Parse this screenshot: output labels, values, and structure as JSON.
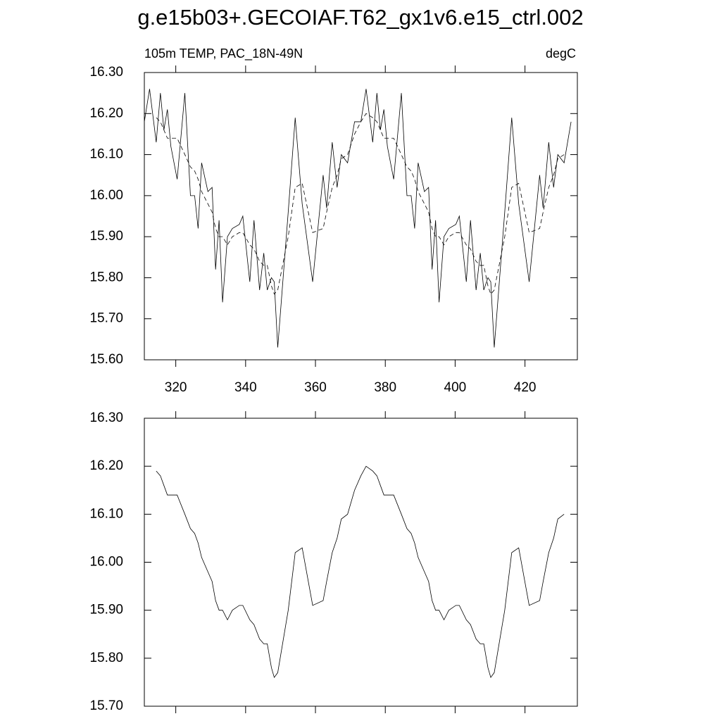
{
  "title": "g.e15b03+.GECOIAF.T62_gx1v6.e15_ctrl.002",
  "chart_data": [
    {
      "type": "line",
      "subtitle_left": "105m TEMP, PAC_18N-49N",
      "subtitle_right": "degC",
      "xlim": [
        311,
        435
      ],
      "xticks": [
        320,
        340,
        360,
        380,
        400,
        420
      ],
      "xticklabels": true,
      "ylim": [
        15.6,
        16.3
      ],
      "yticks": [
        {
          "value": 15.6,
          "label": "15.60"
        },
        {
          "value": 15.7,
          "label": "15.70"
        },
        {
          "value": 15.8,
          "label": "15.80"
        },
        {
          "value": 15.9,
          "label": "15.90"
        },
        {
          "value": 16.0,
          "label": "16.00"
        },
        {
          "value": 16.1,
          "label": "16.10"
        },
        {
          "value": 16.2,
          "label": "16.20"
        },
        {
          "value": 16.3,
          "label": "16.30"
        }
      ],
      "x": [
        311,
        312.5,
        314.4,
        315.6,
        316.6,
        317.6,
        318.6,
        320.4,
        322.6,
        324.2,
        325.4,
        326.4,
        327.4,
        329.2,
        330.4,
        331.4,
        332.4,
        333.4,
        334.8,
        336.2,
        338.2,
        339.2,
        341.2,
        342.4,
        344,
        345.2,
        346.2,
        347.4,
        348.2,
        349.2,
        352.2,
        354.2,
        356.2,
        359.2,
        362.2,
        363.2,
        364.8,
        366.2,
        367.4,
        369.2,
        371.2,
        373,
        374.5,
        376.4,
        377.6,
        378.6,
        379.6,
        380.6,
        382.4,
        384.6,
        386.2,
        387.4,
        388.4,
        389.4,
        391.2,
        392.4,
        393.4,
        394.4,
        395.4,
        396.8,
        398.2,
        400.2,
        401.2,
        403.2,
        404.4,
        406,
        407.2,
        408.2,
        409.4,
        410.2,
        411.2,
        414.2,
        416.2,
        418.2,
        421.2,
        424.2,
        425.2,
        426.8,
        428.2,
        429.4,
        431.2,
        433.2
      ],
      "series": [
        {
          "color": "#000000",
          "dash": false,
          "values": [
            16.18,
            16.26,
            16.13,
            16.25,
            16.16,
            16.21,
            16.12,
            16.04,
            16.25,
            16.0,
            16.0,
            15.92,
            16.08,
            16.01,
            16.02,
            15.82,
            15.94,
            15.74,
            15.9,
            15.92,
            15.93,
            15.95,
            15.79,
            15.94,
            15.77,
            15.86,
            15.77,
            15.8,
            15.79,
            15.63,
            15.96,
            16.19,
            15.98,
            15.79,
            16.05,
            15.97,
            16.13,
            16.02,
            16.1,
            16.08,
            16.18,
            16.18,
            16.26,
            16.13,
            16.25,
            16.16,
            16.21,
            16.12,
            16.04,
            16.25,
            16.0,
            16.0,
            15.92,
            16.08,
            16.01,
            16.02,
            15.82,
            15.94,
            15.74,
            15.9,
            15.92,
            15.93,
            15.95,
            15.79,
            15.94,
            15.77,
            15.86,
            15.77,
            15.8,
            15.79,
            15.63,
            15.96,
            16.19,
            15.98,
            15.79,
            16.05,
            15.97,
            16.13,
            16.02,
            16.1,
            16.08,
            16.18
          ]
        },
        {
          "color": "#000000",
          "dash": true,
          "values": [
            null,
            null,
            16.19,
            16.18,
            16.16,
            16.14,
            16.14,
            16.14,
            16.1,
            16.07,
            16.06,
            16.04,
            16.01,
            15.98,
            15.96,
            15.92,
            15.9,
            15.9,
            15.88,
            15.9,
            15.91,
            15.91,
            15.88,
            15.87,
            15.84,
            15.83,
            15.83,
            15.78,
            15.76,
            15.77,
            15.9,
            16.02,
            16.03,
            15.91,
            15.92,
            15.96,
            16.02,
            16.05,
            16.09,
            16.1,
            16.15,
            16.18,
            16.2,
            16.19,
            16.18,
            16.16,
            16.14,
            16.14,
            16.14,
            16.1,
            16.07,
            16.06,
            16.04,
            16.01,
            15.98,
            15.96,
            15.92,
            15.9,
            15.9,
            15.88,
            15.9,
            15.91,
            15.91,
            15.88,
            15.87,
            15.84,
            15.83,
            15.83,
            15.78,
            15.76,
            15.77,
            15.9,
            16.02,
            16.03,
            15.91,
            15.92,
            15.96,
            16.02,
            16.05,
            16.09,
            16.1,
            null
          ]
        }
      ]
    },
    {
      "type": "line",
      "xlim": [
        311,
        435
      ],
      "xticks": [
        320,
        340,
        360,
        380,
        400,
        420
      ],
      "xticklabels": false,
      "ylim": [
        15.7,
        16.3
      ],
      "yticks": [
        {
          "value": 15.7,
          "label": "15.70"
        },
        {
          "value": 15.8,
          "label": "15.80"
        },
        {
          "value": 15.9,
          "label": "15.90"
        },
        {
          "value": 16.0,
          "label": "16.00"
        },
        {
          "value": 16.1,
          "label": "16.10"
        },
        {
          "value": 16.2,
          "label": "16.20"
        },
        {
          "value": 16.3,
          "label": "16.30"
        }
      ],
      "x": [
        311,
        312.5,
        314.4,
        315.6,
        316.6,
        317.6,
        318.6,
        320.4,
        322.6,
        324.2,
        325.4,
        326.4,
        327.4,
        329.2,
        330.4,
        331.4,
        332.4,
        333.4,
        334.8,
        336.2,
        338.2,
        339.2,
        341.2,
        342.4,
        344,
        345.2,
        346.2,
        347.4,
        348.2,
        349.2,
        352.2,
        354.2,
        356.2,
        359.2,
        362.2,
        363.2,
        364.8,
        366.2,
        367.4,
        369.2,
        371.2,
        373,
        374.5,
        376.4,
        377.6,
        378.6,
        379.6,
        380.6,
        382.4,
        384.6,
        386.2,
        387.4,
        388.4,
        389.4,
        391.2,
        392.4,
        393.4,
        394.4,
        395.4,
        396.8,
        398.2,
        400.2,
        401.2,
        403.2,
        404.4,
        406,
        407.2,
        408.2,
        409.4,
        410.2,
        411.2,
        414.2,
        416.2,
        418.2,
        421.2,
        424.2,
        425.2,
        426.8,
        428.2,
        429.4,
        431.2,
        433.2
      ],
      "series": [
        {
          "color": "#000000",
          "dash": false,
          "values": [
            null,
            null,
            16.19,
            16.18,
            16.16,
            16.14,
            16.14,
            16.14,
            16.1,
            16.07,
            16.06,
            16.04,
            16.01,
            15.98,
            15.96,
            15.92,
            15.9,
            15.9,
            15.88,
            15.9,
            15.91,
            15.91,
            15.88,
            15.87,
            15.84,
            15.83,
            15.83,
            15.78,
            15.76,
            15.77,
            15.9,
            16.02,
            16.03,
            15.91,
            15.92,
            15.96,
            16.02,
            16.05,
            16.09,
            16.1,
            16.15,
            16.18,
            16.2,
            16.19,
            16.18,
            16.16,
            16.14,
            16.14,
            16.14,
            16.1,
            16.07,
            16.06,
            16.04,
            16.01,
            15.98,
            15.96,
            15.92,
            15.9,
            15.9,
            15.88,
            15.9,
            15.91,
            15.91,
            15.88,
            15.87,
            15.84,
            15.83,
            15.83,
            15.78,
            15.76,
            15.77,
            15.9,
            16.02,
            16.03,
            15.91,
            15.92,
            15.96,
            16.02,
            16.05,
            16.09,
            16.1,
            null
          ]
        }
      ]
    }
  ]
}
